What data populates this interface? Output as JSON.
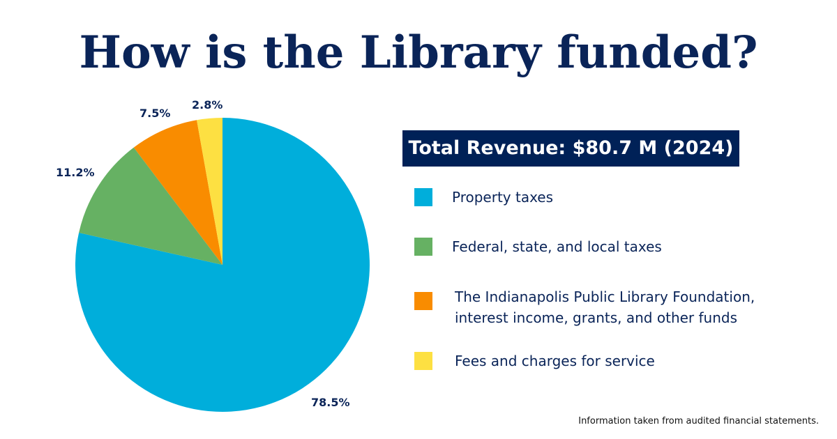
{
  "chart_data": {
    "type": "pie",
    "title": "How is the Library funded?",
    "subtitle": "Total Revenue: $80.7 M (2024)",
    "series": [
      {
        "name": "Property taxes",
        "value": 78.5,
        "label": "78.5%",
        "color": "#00AEDB"
      },
      {
        "name": "Federal, state, and local taxes",
        "value": 11.2,
        "label": "11.2%",
        "color": "#66B163"
      },
      {
        "name": "The Indianapolis Public Library Foundation, interest income, grants, and other funds",
        "value": 7.5,
        "label": "7.5%",
        "color": "#F98C00"
      },
      {
        "name": "Fees and charges for service",
        "value": 2.8,
        "label": "2.8%",
        "color": "#FDE042"
      }
    ],
    "legend": "right"
  },
  "legend_lines": {
    "foundation_1": "The Indianapolis Public Library Foundation,",
    "foundation_2": "interest income, grants, and other funds"
  },
  "footnote": "Information taken from audited financial statements.",
  "colors": {
    "navy": "#002157"
  }
}
